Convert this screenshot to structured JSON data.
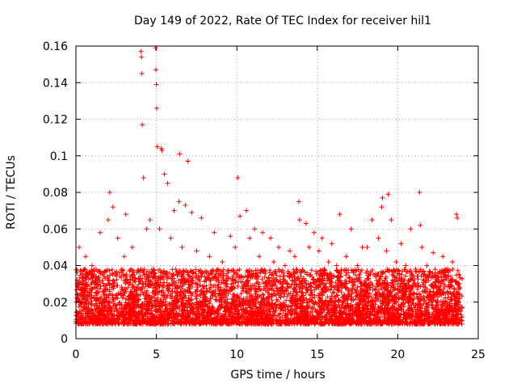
{
  "chart_data": {
    "type": "scatter",
    "title": "Day 149 of 2022, Rate Of TEC Index for receiver hil1",
    "xlabel": "GPS time / hours",
    "ylabel": "ROTI / TECUs",
    "xlim": [
      0,
      25
    ],
    "ylim": [
      0,
      0.16
    ],
    "xticks": [
      0,
      5,
      10,
      15,
      20,
      25
    ],
    "yticks": [
      0,
      0.02,
      0.04,
      0.06,
      0.08,
      0.1,
      0.12,
      0.14,
      0.16
    ],
    "xtick_labels": [
      "0",
      "5",
      "10",
      "15",
      "20",
      "25"
    ],
    "ytick_labels": [
      "0",
      "0.02",
      "0.04",
      "0.06",
      "0.08",
      "0.1",
      "0.12",
      "0.14",
      "0.16"
    ],
    "grid": true,
    "marker": "+",
    "marker_color": "#ff0000",
    "series": [
      {
        "name": "ROTI",
        "x": [
          4.05,
          4.08,
          4.1,
          4.12,
          4.95,
          4.97,
          5.0,
          5.02,
          5.05,
          5.3,
          5.35,
          6.45,
          6.95,
          10.05,
          13.85,
          19.05,
          19.4,
          21.35,
          21.4,
          23.65,
          23.7,
          2.1,
          2.3,
          3.1,
          4.2,
          4.6,
          5.5,
          5.7,
          6.1,
          6.4,
          6.8,
          7.2,
          7.8,
          8.6,
          9.6,
          10.2,
          10.6,
          11.1,
          11.6,
          12.1,
          12.6,
          13.3,
          13.9,
          14.3,
          14.8,
          15.3,
          15.9,
          16.4,
          17.1,
          17.8,
          18.4,
          19.0,
          19.6,
          20.2,
          20.8,
          21.5,
          22.2,
          22.8,
          23.4,
          0.2,
          0.6,
          1.0,
          1.5,
          2.0,
          2.6,
          3.0,
          3.5,
          4.4,
          5.2,
          5.9,
          6.6,
          7.5,
          8.3,
          9.1,
          9.9,
          10.8,
          11.4,
          12.3,
          13.0,
          13.6,
          14.5,
          15.1,
          15.7,
          16.2,
          16.8,
          17.5,
          18.1,
          18.8,
          19.3,
          19.9,
          20.5,
          21.1,
          21.8,
          22.5,
          23.1,
          23.8
        ],
        "y": [
          0.157,
          0.154,
          0.145,
          0.117,
          0.159,
          0.147,
          0.139,
          0.126,
          0.105,
          0.104,
          0.103,
          0.101,
          0.097,
          0.088,
          0.075,
          0.077,
          0.079,
          0.08,
          0.062,
          0.068,
          0.066,
          0.08,
          0.072,
          0.068,
          0.088,
          0.065,
          0.09,
          0.085,
          0.07,
          0.075,
          0.073,
          0.069,
          0.066,
          0.058,
          0.056,
          0.067,
          0.07,
          0.06,
          0.058,
          0.055,
          0.05,
          0.048,
          0.065,
          0.063,
          0.058,
          0.055,
          0.052,
          0.068,
          0.06,
          0.05,
          0.065,
          0.072,
          0.065,
          0.052,
          0.06,
          0.05,
          0.047,
          0.045,
          0.042,
          0.05,
          0.045,
          0.04,
          0.058,
          0.065,
          0.055,
          0.045,
          0.05,
          0.06,
          0.06,
          0.055,
          0.05,
          0.048,
          0.045,
          0.042,
          0.05,
          0.055,
          0.045,
          0.042,
          0.04,
          0.045,
          0.05,
          0.048,
          0.042,
          0.04,
          0.045,
          0.04,
          0.05,
          0.055,
          0.048,
          0.042,
          0.04,
          0.038,
          0.04,
          0.036,
          0.038,
          0.035
        ]
      }
    ]
  }
}
